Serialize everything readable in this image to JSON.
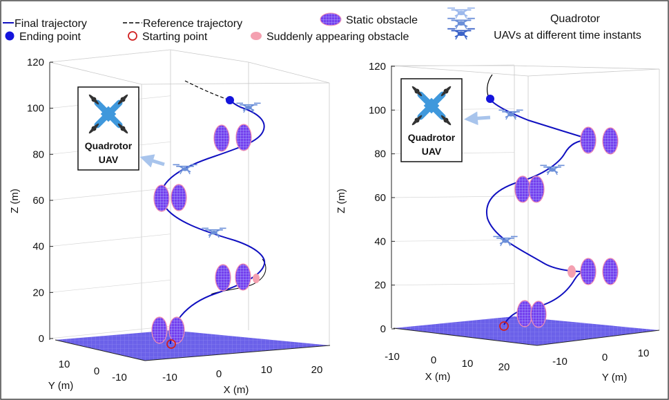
{
  "legend": {
    "final_trajectory": "Final trajectory",
    "reference_trajectory": "Reference trajectory",
    "ending_point": "Ending point",
    "starting_point": "Starting point",
    "static_obstacle": "Static obstacle",
    "sudden_obstacle": "Suddenly appearing obstacle",
    "quadrotor_line1": "Quadrotor",
    "quadrotor_line2": "UAVs at different time instants"
  },
  "colors": {
    "trajectory": "#1010c0",
    "reference": "#000000",
    "ending_point": "#1414dc",
    "starting_point": "#d02020",
    "obstacle_fill": "#7a3ef0",
    "obstacle_grid": "#b8c0ff",
    "obstacle_rim": "#f08cb0",
    "sudden_obstacle": "#f4a0b0",
    "uav": "#6a8ed8",
    "ground": "#4a3ee0",
    "arrow": "#a8c4ec",
    "uav_icon": "#3f98dc"
  },
  "chart_data": [
    {
      "type": "line3d",
      "panel": "left",
      "zlabel": "Z (m)",
      "xlabel": "X (m)",
      "ylabel": "Y (m)",
      "zlim": [
        0,
        120
      ],
      "z_ticks": [
        "0",
        "20",
        "40",
        "60",
        "80",
        "100",
        "120"
      ],
      "x_ticks": [
        "-10",
        "0",
        "10",
        "20"
      ],
      "y_ticks": [
        "10",
        "0",
        "-10"
      ],
      "uav_box": {
        "line1": "Quadrotor",
        "line2": "UAV"
      },
      "starting_point_z": 0,
      "ending_point_z": 103,
      "static_obstacle_levels_z": [
        4,
        27,
        60,
        87
      ],
      "sudden_obstacle_levels_z": [
        26
      ],
      "uav_snapshot_levels_z": [
        46,
        73,
        100
      ]
    },
    {
      "type": "line3d",
      "panel": "right",
      "zlabel": "Z (m)",
      "xlabel": "X (m)",
      "ylabel": "Y (m)",
      "zlim": [
        0,
        120
      ],
      "z_ticks": [
        "0",
        "20",
        "40",
        "60",
        "80",
        "100",
        "120"
      ],
      "x_ticks": [
        "-10",
        "0",
        "10",
        "20"
      ],
      "y_ticks": [
        "-10",
        "0",
        "10"
      ],
      "uav_box": {
        "line1": "Quadrotor",
        "line2": "UAV"
      },
      "starting_point_z": 0,
      "ending_point_z": 103,
      "static_obstacle_levels_z": [
        5,
        25,
        63,
        85
      ],
      "sudden_obstacle_levels_z": [
        25
      ],
      "uav_snapshot_levels_z": [
        40,
        70,
        97
      ]
    }
  ]
}
